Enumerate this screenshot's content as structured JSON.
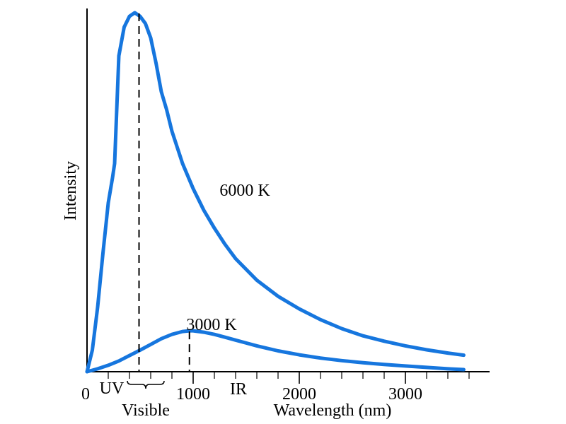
{
  "chart_data": {
    "type": "line",
    "title": "",
    "xlabel": "Wavelength (nm)",
    "ylabel": "Intensity",
    "xlim": [
      0,
      3800
    ],
    "ylim": [
      0,
      1
    ],
    "x_ticks": [
      0,
      1000,
      2000,
      3000
    ],
    "x_tick_labels": [
      "0",
      "1000",
      "2000",
      "3000"
    ],
    "minor_tick_step": 200,
    "grid": false,
    "legend": "none",
    "line_color": "#1676de",
    "annotations": {
      "uv": "UV",
      "visible": "Visible",
      "ir": "IR",
      "visible_range": [
        400,
        700
      ]
    },
    "series": [
      {
        "name": "6000 K",
        "temperature": 6000,
        "peak_wavelength": 490,
        "x": [
          0,
          50,
          100,
          150,
          200,
          240,
          260,
          280,
          300,
          350,
          400,
          450,
          500,
          550,
          600,
          650,
          700,
          750,
          800,
          900,
          1000,
          1100,
          1200,
          1300,
          1400,
          1600,
          1800,
          2000,
          2200,
          2400,
          2600,
          2800,
          3000,
          3200,
          3400,
          3550
        ],
        "y": [
          0.0,
          0.06,
          0.18,
          0.33,
          0.47,
          0.54,
          0.58,
          0.73,
          0.88,
          0.96,
          0.99,
          1.0,
          0.99,
          0.97,
          0.93,
          0.86,
          0.78,
          0.73,
          0.67,
          0.58,
          0.51,
          0.45,
          0.4,
          0.355,
          0.315,
          0.255,
          0.21,
          0.175,
          0.145,
          0.12,
          0.1,
          0.085,
          0.072,
          0.061,
          0.052,
          0.046
        ]
      },
      {
        "name": "3000 K",
        "temperature": 3000,
        "peak_wavelength": 965,
        "x": [
          0,
          100,
          200,
          300,
          400,
          500,
          600,
          700,
          800,
          900,
          965,
          1000,
          1100,
          1200,
          1300,
          1400,
          1500,
          1600,
          1800,
          2000,
          2200,
          2400,
          2600,
          2800,
          3000,
          3200,
          3400,
          3550
        ],
        "y": [
          0.0,
          0.008,
          0.018,
          0.03,
          0.045,
          0.06,
          0.076,
          0.092,
          0.104,
          0.112,
          0.114,
          0.114,
          0.11,
          0.104,
          0.096,
          0.088,
          0.08,
          0.072,
          0.058,
          0.047,
          0.038,
          0.031,
          0.025,
          0.02,
          0.016,
          0.012,
          0.008,
          0.006
        ]
      }
    ]
  }
}
